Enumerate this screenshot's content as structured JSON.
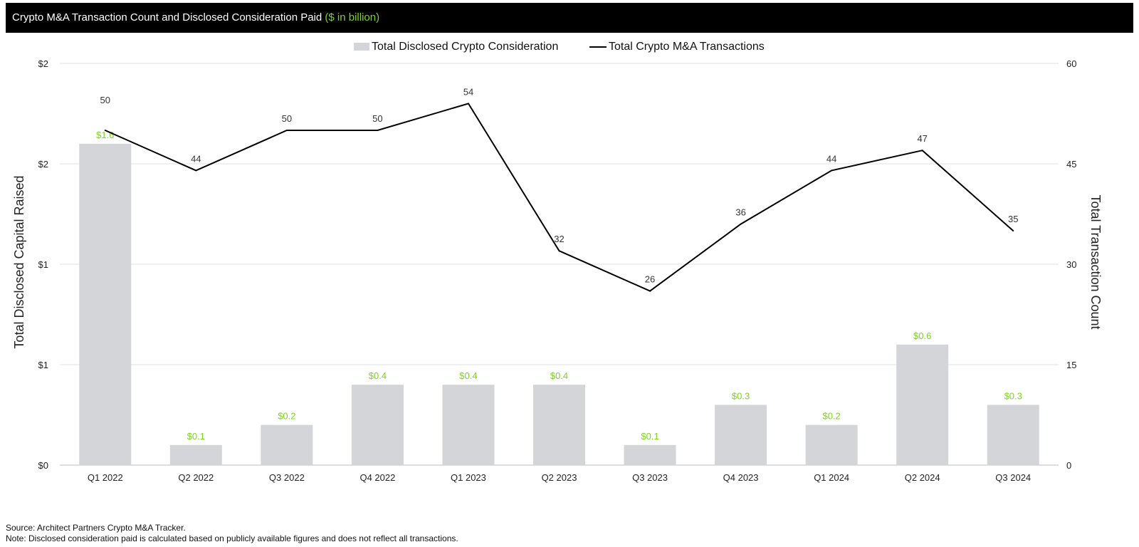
{
  "header": {
    "title": "Crypto M&A Transaction Count and Disclosed Consideration Paid",
    "unit_note": "($ in billion)"
  },
  "legend": {
    "bars_label": "Total Disclosed Crypto Consideration",
    "line_label": "Total Crypto M&A Transactions"
  },
  "footer": {
    "source": "Source: Architect Partners Crypto M&A Tracker.",
    "note": "Note: Disclosed consideration paid is calculated based on publicly available figures and does not reflect all transactions."
  },
  "colors": {
    "bar": "#d4d5d8",
    "line": "#000000",
    "value_label": "#7ed321",
    "grid": "#e2e2e2",
    "title_bg": "#000000"
  },
  "chart_data": {
    "type": "bar",
    "categories": [
      "Q1 2022",
      "Q2 2022",
      "Q3 2022",
      "Q4 2022",
      "Q1 2023",
      "Q2 2023",
      "Q3 2023",
      "Q4 2023",
      "Q1 2024",
      "Q2 2024",
      "Q3 2024"
    ],
    "series": [
      {
        "name": "Total Disclosed Crypto Consideration",
        "type": "bar",
        "axis": "left",
        "values": [
          1.6,
          0.1,
          0.2,
          0.4,
          0.4,
          0.4,
          0.1,
          0.3,
          0.2,
          0.6,
          0.3
        ],
        "labels": [
          "$1.6",
          "$0.1",
          "$0.2",
          "$0.4",
          "$0.4",
          "$0.4",
          "$0.1",
          "$0.3",
          "$0.2",
          "$0.6",
          "$0.3"
        ]
      },
      {
        "name": "Total Crypto M&A Transactions",
        "type": "line",
        "axis": "right",
        "values": [
          50,
          44,
          50,
          50,
          54,
          32,
          26,
          36,
          44,
          47,
          35
        ],
        "labels": [
          "50",
          "44",
          "50",
          "50",
          "54",
          "32",
          "26",
          "36",
          "44",
          "47",
          "35"
        ]
      }
    ],
    "y_left": {
      "label": "Total Disclosed Capital Raised",
      "range": [
        0,
        2
      ],
      "ticks": [
        0,
        0.5,
        1,
        1.5,
        2
      ],
      "tick_labels": [
        "$0",
        "$1",
        "$1",
        "$2",
        "$2"
      ]
    },
    "y_right": {
      "label": "Total Transaction Count",
      "range": [
        0,
        60
      ],
      "ticks": [
        0,
        15,
        30,
        45,
        60
      ],
      "tick_labels": [
        "0",
        "15",
        "30",
        "45",
        "60"
      ]
    },
    "grid": true,
    "legend_position": "top-center"
  }
}
